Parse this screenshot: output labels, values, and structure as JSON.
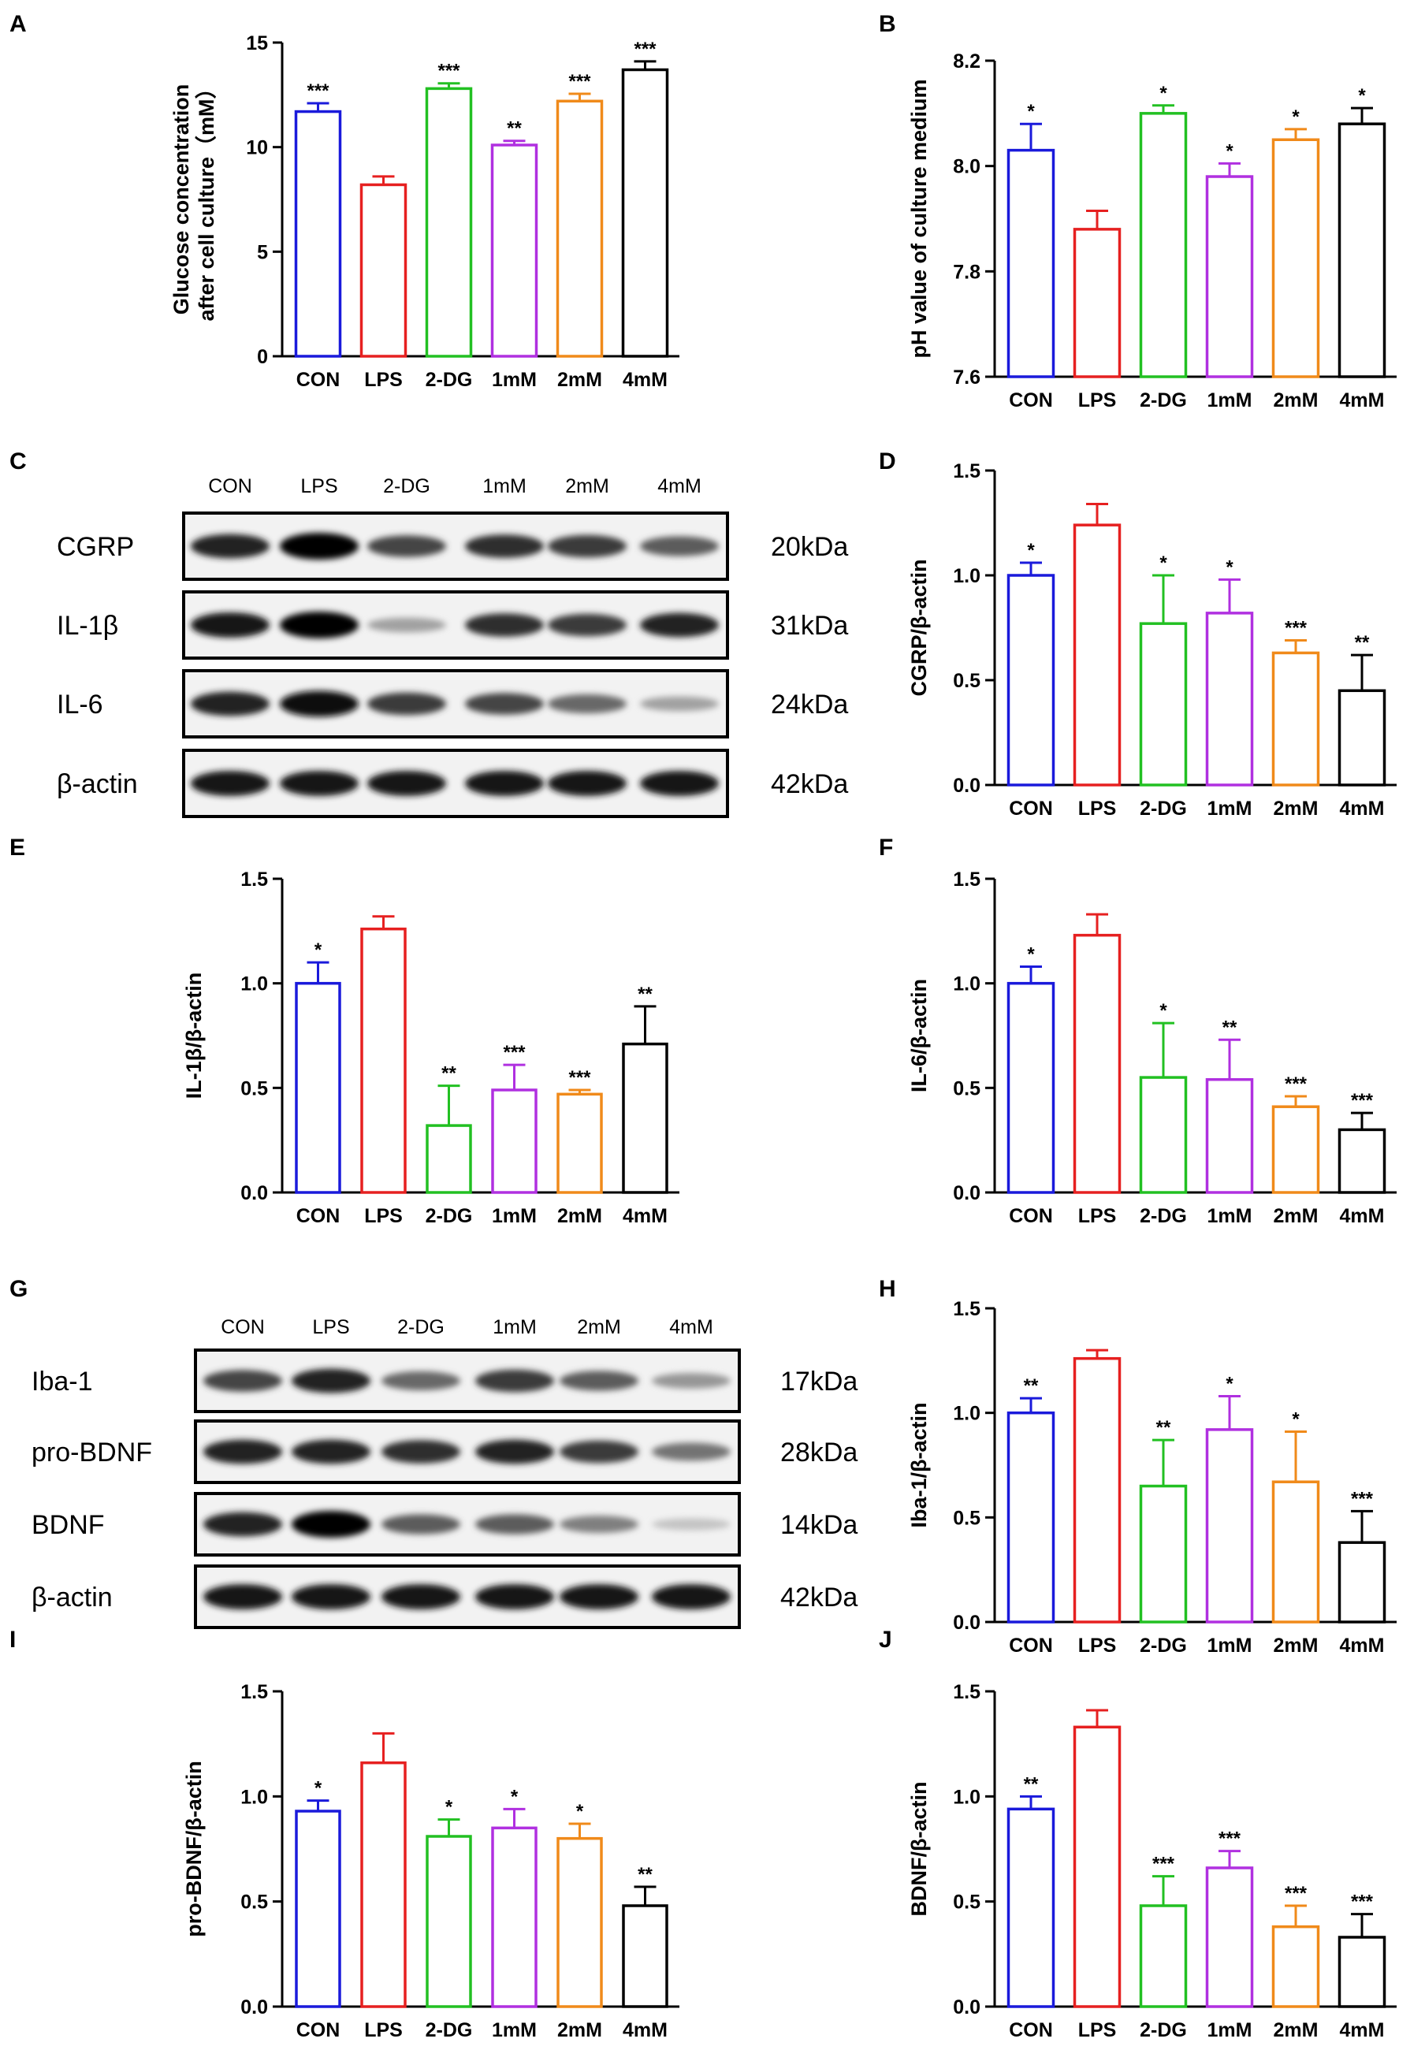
{
  "panels": [
    {
      "id": "A",
      "letter": "A"
    },
    {
      "id": "B",
      "letter": "B"
    },
    {
      "id": "C",
      "letter": "C"
    },
    {
      "id": "D",
      "letter": "D"
    },
    {
      "id": "E",
      "letter": "E"
    },
    {
      "id": "F",
      "letter": "F"
    },
    {
      "id": "G",
      "letter": "G"
    },
    {
      "id": "H",
      "letter": "H"
    },
    {
      "id": "I",
      "letter": "I"
    },
    {
      "id": "J",
      "letter": "J"
    }
  ],
  "colors": {
    "CON": "#1a1adb",
    "LPS": "#e62020",
    "2-DG": "#22c022",
    "1mM": "#b030e0",
    "2mM": "#f08a1a",
    "4mM": "#000000"
  },
  "chart_data": [
    {
      "panel": "A",
      "type": "bar",
      "categories": [
        "CON",
        "LPS",
        "2-DG",
        "1mM",
        "2mM",
        "4mM"
      ],
      "ylabel_lines": [
        "Glucose concentration",
        "after cell culture（mM）"
      ],
      "ylim": [
        0,
        15
      ],
      "yticks": [
        "0",
        "5",
        "10",
        "15"
      ],
      "ytick_values": [
        0,
        5,
        10,
        15
      ],
      "values": [
        11.7,
        8.2,
        12.8,
        10.1,
        12.2,
        13.7
      ],
      "errors": [
        0.4,
        0.4,
        0.25,
        0.2,
        0.35,
        0.4
      ],
      "significance": [
        "***",
        "",
        "***",
        "**",
        "***",
        "***"
      ]
    },
    {
      "panel": "B",
      "type": "bar",
      "categories": [
        "CON",
        "LPS",
        "2-DG",
        "1mM",
        "2mM",
        "4mM"
      ],
      "ylabel_lines": [
        "pH value of culture medium"
      ],
      "ylim": [
        7.6,
        8.2
      ],
      "yticks": [
        "7.6",
        "7.8",
        "8.0",
        "8.2"
      ],
      "ytick_values": [
        7.6,
        7.8,
        8.0,
        8.2
      ],
      "values": [
        8.03,
        7.88,
        8.1,
        7.98,
        8.05,
        8.08
      ],
      "errors": [
        0.05,
        0.035,
        0.015,
        0.025,
        0.02,
        0.03
      ],
      "significance": [
        "*",
        "",
        "*",
        "*",
        "*",
        "*"
      ]
    },
    {
      "panel": "D",
      "type": "bar",
      "categories": [
        "CON",
        "LPS",
        "2-DG",
        "1mM",
        "2mM",
        "4mM"
      ],
      "ylabel_lines": [
        "CGRP/β-actin"
      ],
      "ylim": [
        0,
        1.5
      ],
      "yticks": [
        "0.0",
        "0.5",
        "1.0",
        "1.5"
      ],
      "ytick_values": [
        0,
        0.5,
        1.0,
        1.5
      ],
      "values": [
        1.0,
        1.24,
        0.77,
        0.82,
        0.63,
        0.45
      ],
      "errors": [
        0.06,
        0.1,
        0.23,
        0.16,
        0.06,
        0.17
      ],
      "significance": [
        "*",
        "",
        "*",
        "*",
        "***",
        "**"
      ]
    },
    {
      "panel": "E",
      "type": "bar",
      "categories": [
        "CON",
        "LPS",
        "2-DG",
        "1mM",
        "2mM",
        "4mM"
      ],
      "ylabel_lines": [
        "IL-1β/β-actin"
      ],
      "ylim": [
        0,
        1.5
      ],
      "yticks": [
        "0.0",
        "0.5",
        "1.0",
        "1.5"
      ],
      "ytick_values": [
        0,
        0.5,
        1.0,
        1.5
      ],
      "values": [
        1.0,
        1.26,
        0.32,
        0.49,
        0.47,
        0.71
      ],
      "errors": [
        0.1,
        0.06,
        0.19,
        0.12,
        0.02,
        0.18
      ],
      "significance": [
        "*",
        "",
        "**",
        "***",
        "***",
        "**"
      ]
    },
    {
      "panel": "F",
      "type": "bar",
      "categories": [
        "CON",
        "LPS",
        "2-DG",
        "1mM",
        "2mM",
        "4mM"
      ],
      "ylabel_lines": [
        "IL-6/β-actin"
      ],
      "ylim": [
        0,
        1.5
      ],
      "yticks": [
        "0.0",
        "0.5",
        "1.0",
        "1.5"
      ],
      "ytick_values": [
        0,
        0.5,
        1.0,
        1.5
      ],
      "values": [
        1.0,
        1.23,
        0.55,
        0.54,
        0.41,
        0.3
      ],
      "errors": [
        0.08,
        0.1,
        0.26,
        0.19,
        0.05,
        0.08
      ],
      "significance": [
        "*",
        "",
        "*",
        "**",
        "***",
        "***"
      ]
    },
    {
      "panel": "H",
      "type": "bar",
      "categories": [
        "CON",
        "LPS",
        "2-DG",
        "1mM",
        "2mM",
        "4mM"
      ],
      "ylabel_lines": [
        "Iba-1/β-actin"
      ],
      "ylim": [
        0,
        1.5
      ],
      "yticks": [
        "0.0",
        "0.5",
        "1.0",
        "1.5"
      ],
      "ytick_values": [
        0,
        0.5,
        1.0,
        1.5
      ],
      "values": [
        1.0,
        1.26,
        0.65,
        0.92,
        0.67,
        0.38
      ],
      "errors": [
        0.07,
        0.04,
        0.22,
        0.16,
        0.24,
        0.15
      ],
      "significance": [
        "**",
        "",
        "**",
        "*",
        "*",
        "***"
      ]
    },
    {
      "panel": "I",
      "type": "bar",
      "categories": [
        "CON",
        "LPS",
        "2-DG",
        "1mM",
        "2mM",
        "4mM"
      ],
      "ylabel_lines": [
        "pro-BDNF/β-actin"
      ],
      "ylim": [
        0,
        1.5
      ],
      "yticks": [
        "0.0",
        "0.5",
        "1.0",
        "1.5"
      ],
      "ytick_values": [
        0,
        0.5,
        1.0,
        1.5
      ],
      "values": [
        0.93,
        1.16,
        0.81,
        0.85,
        0.8,
        0.48
      ],
      "errors": [
        0.05,
        0.14,
        0.08,
        0.09,
        0.07,
        0.09
      ],
      "significance": [
        "*",
        "",
        "*",
        "*",
        "*",
        "**"
      ]
    },
    {
      "panel": "J",
      "type": "bar",
      "categories": [
        "CON",
        "LPS",
        "2-DG",
        "1mM",
        "2mM",
        "4mM"
      ],
      "ylabel_lines": [
        "BDNF/β-actin"
      ],
      "ylim": [
        0,
        1.5
      ],
      "yticks": [
        "0.0",
        "0.5",
        "1.0",
        "1.5"
      ],
      "ytick_values": [
        0,
        0.5,
        1.0,
        1.5
      ],
      "values": [
        0.94,
        1.33,
        0.48,
        0.66,
        0.38,
        0.33
      ],
      "errors": [
        0.06,
        0.08,
        0.14,
        0.08,
        0.1,
        0.11
      ],
      "significance": [
        "**",
        "",
        "***",
        "***",
        "***",
        "***"
      ]
    }
  ],
  "blots": [
    {
      "panel": "C",
      "lanes": [
        "CON",
        "LPS",
        "2-DG",
        "1mM",
        "2mM",
        "4mM"
      ],
      "rows": [
        {
          "protein": "CGRP",
          "kda": "20kDa",
          "intensity": [
            0.85,
            1.0,
            0.7,
            0.8,
            0.75,
            0.6
          ]
        },
        {
          "protein": "IL-1β",
          "kda": "31kDa",
          "intensity": [
            0.9,
            1.0,
            0.3,
            0.8,
            0.75,
            0.85
          ]
        },
        {
          "protein": "IL-6",
          "kda": "24kDa",
          "intensity": [
            0.85,
            0.95,
            0.75,
            0.7,
            0.55,
            0.3
          ]
        },
        {
          "protein": "β-actin",
          "kda": "42kDa",
          "intensity": [
            0.9,
            0.9,
            0.9,
            0.9,
            0.9,
            0.9
          ]
        }
      ]
    },
    {
      "panel": "G",
      "lanes": [
        "CON",
        "LPS",
        "2-DG",
        "1mM",
        "2mM",
        "4mM"
      ],
      "rows": [
        {
          "protein": "Iba-1",
          "kda": "17kDa",
          "intensity": [
            0.7,
            0.85,
            0.55,
            0.75,
            0.6,
            0.35
          ]
        },
        {
          "protein": "pro-BDNF",
          "kda": "28kDa",
          "intensity": [
            0.85,
            0.85,
            0.8,
            0.85,
            0.75,
            0.5
          ]
        },
        {
          "protein": "BDNF",
          "kda": "14kDa",
          "intensity": [
            0.85,
            1.0,
            0.6,
            0.6,
            0.45,
            0.15
          ]
        },
        {
          "protein": "β-actin",
          "kda": "42kDa",
          "intensity": [
            0.9,
            0.9,
            0.9,
            0.9,
            0.9,
            0.9
          ]
        }
      ]
    }
  ]
}
